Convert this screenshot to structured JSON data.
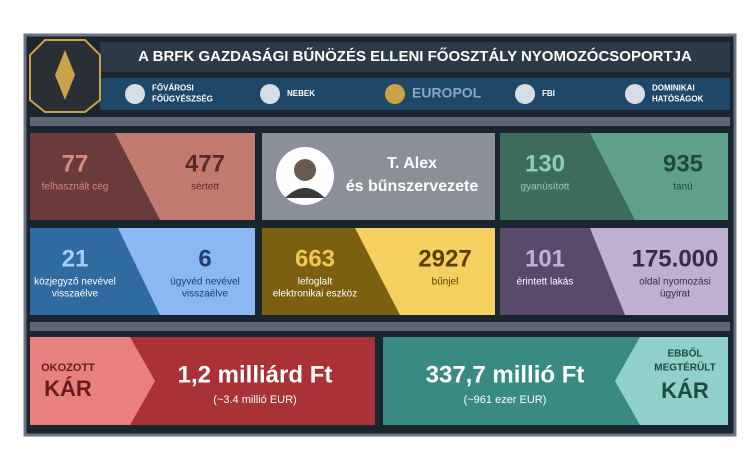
{
  "header": {
    "title": "A BRFK GAZDASÁGI BŰNÖZÉS ELLENI FŐOSZTÁLY NYOMOZÓCSOPORTJA"
  },
  "partners": [
    {
      "label": [
        "FŐVÁROSI",
        "FŐÜGYÉSZSÉG"
      ]
    },
    {
      "label": [
        "NEBEK"
      ]
    },
    {
      "label": [
        "EUROPOL"
      ]
    },
    {
      "label": [
        "FBI"
      ]
    },
    {
      "label": [
        "DOMINIKAI",
        "HATÓSÁGOK"
      ]
    }
  ],
  "suspect": {
    "name": "T. Alex",
    "group": "és bűnszervezete"
  },
  "stats": [
    {
      "value": "77",
      "label": [
        "felhasznált cég"
      ]
    },
    {
      "value": "477",
      "label": [
        "sértett"
      ]
    },
    {
      "value": "130",
      "label": [
        "gyanúsított"
      ]
    },
    {
      "value": "935",
      "label": [
        "tanú"
      ]
    },
    {
      "value": "21",
      "label": [
        "közjegyző nevével",
        "visszaélve"
      ]
    },
    {
      "value": "6",
      "label": [
        "ügyvéd nevével",
        "visszaélve"
      ]
    },
    {
      "value": "663",
      "label": [
        "lefoglalt",
        "elektronikai eszköz"
      ]
    },
    {
      "value": "2927",
      "label": [
        "bűnjel"
      ]
    },
    {
      "value": "101",
      "label": [
        "érintett lakás"
      ]
    },
    {
      "value": "175.000",
      "label": [
        "oldal nyomozási",
        "ügyirat"
      ]
    }
  ],
  "damage": {
    "caused": {
      "heading": [
        "OKOZOTT",
        "KÁR"
      ],
      "amount": "1,2 milliárd Ft",
      "eur": "(~3.4 millió EUR)"
    },
    "recovered": {
      "heading": [
        "EBBŐL",
        "MEGTÉRÜLT",
        "KÁR"
      ],
      "amount": "337,7 millió Ft",
      "eur": "(~961 ezer EUR)"
    }
  }
}
